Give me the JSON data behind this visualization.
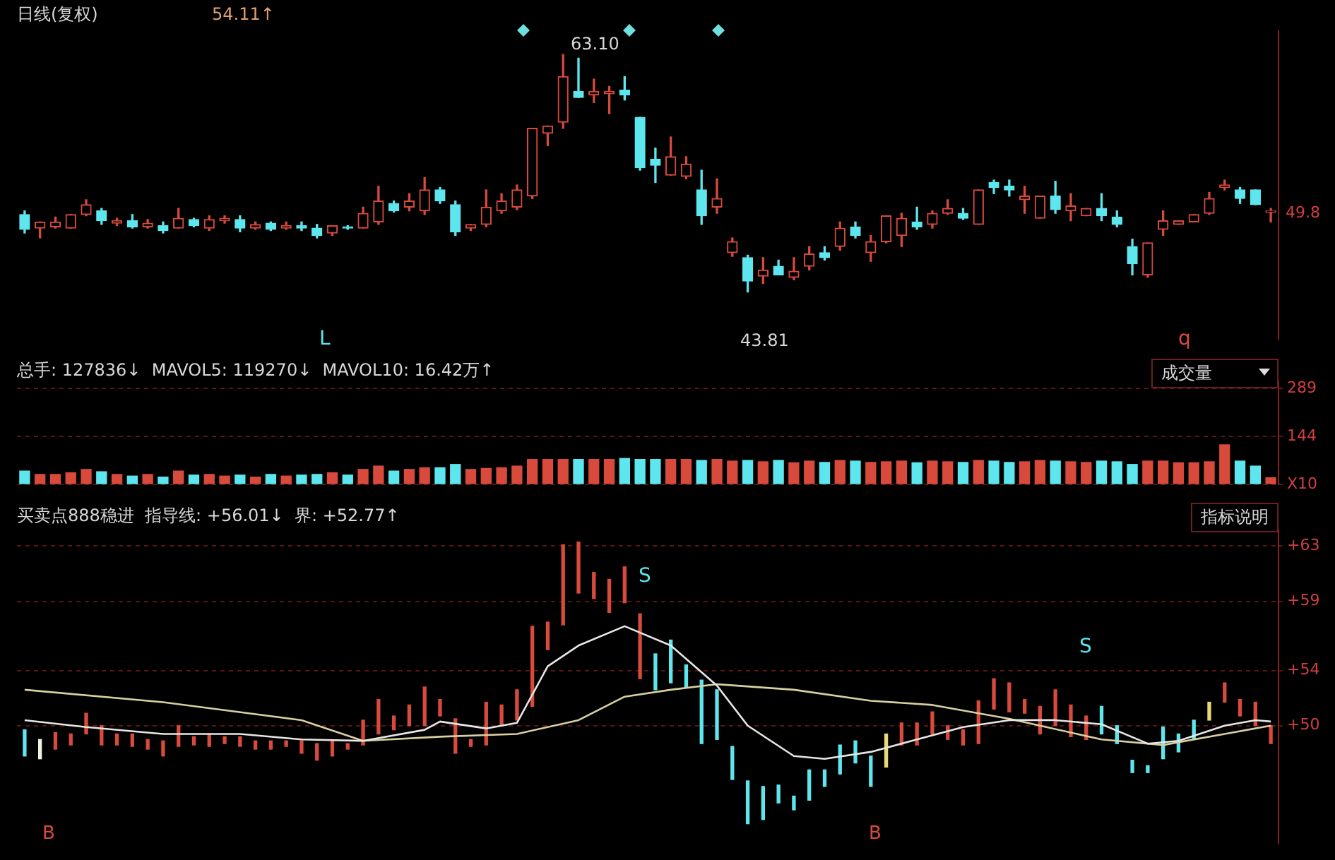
{
  "chart_data": [
    {
      "type": "candlestick",
      "title": "日线(复权)",
      "tick_labels": false,
      "categories": [
        null,
        null,
        null,
        null,
        null,
        null,
        null,
        null,
        null,
        null,
        null,
        null,
        null,
        null,
        null,
        null,
        null,
        null,
        null,
        null,
        null,
        null,
        null,
        null,
        null,
        null,
        null,
        null,
        null,
        null,
        null,
        null,
        null,
        null,
        null,
        null,
        null,
        null,
        null,
        null,
        null,
        null,
        null,
        null,
        null,
        null,
        null,
        null,
        null,
        null,
        null,
        null,
        null,
        null,
        null,
        null,
        null,
        null,
        null,
        null,
        null,
        null,
        null,
        null,
        null,
        null,
        null,
        null,
        null,
        null,
        null,
        null,
        null,
        null,
        null,
        null,
        null,
        null,
        null,
        null,
        null,
        null
      ],
      "ohlc": [
        [
          50.1,
          50.4,
          48.6,
          48.9
        ],
        [
          49.0,
          49.5,
          48.2,
          49.5
        ],
        [
          49.1,
          49.9,
          49.0,
          49.5
        ],
        [
          49.0,
          50.1,
          49.0,
          50.1
        ],
        [
          50.1,
          51.3,
          50.0,
          50.9
        ],
        [
          50.4,
          50.6,
          49.3,
          49.6
        ],
        [
          49.4,
          49.8,
          49.2,
          49.6
        ],
        [
          49.6,
          50.1,
          49.0,
          49.1
        ],
        [
          49.1,
          49.7,
          49.0,
          49.4
        ],
        [
          49.2,
          49.5,
          48.6,
          48.8
        ],
        [
          49.0,
          50.6,
          49.0,
          49.8
        ],
        [
          49.7,
          49.8,
          49.1,
          49.2
        ],
        [
          49.0,
          50.0,
          48.8,
          49.7
        ],
        [
          49.6,
          50.0,
          49.4,
          49.8
        ],
        [
          49.7,
          50.0,
          48.7,
          49.0
        ],
        [
          49.0,
          49.5,
          48.9,
          49.3
        ],
        [
          49.4,
          49.5,
          48.8,
          48.9
        ],
        [
          49.0,
          49.5,
          48.9,
          49.2
        ],
        [
          49.2,
          49.5,
          48.8,
          49.0
        ],
        [
          49.0,
          49.3,
          48.2,
          48.4
        ],
        [
          48.6,
          49.2,
          48.4,
          49.2
        ],
        [
          49.1,
          49.2,
          48.9,
          49.0
        ],
        [
          49.0,
          50.7,
          49.0,
          50.2
        ],
        [
          49.5,
          52.4,
          49.3,
          51.2
        ],
        [
          51.0,
          51.2,
          50.3,
          50.4
        ],
        [
          50.7,
          51.8,
          50.4,
          51.2
        ],
        [
          50.4,
          53.1,
          50.1,
          52.1
        ],
        [
          52.1,
          52.3,
          51.0,
          51.2
        ],
        [
          50.9,
          51.2,
          48.4,
          48.7
        ],
        [
          49.0,
          49.3,
          48.8,
          49.3
        ],
        [
          49.3,
          52.1,
          49.1,
          50.7
        ],
        [
          50.4,
          51.8,
          50.2,
          51.2
        ],
        [
          50.7,
          52.5,
          50.5,
          52.1
        ],
        [
          51.6,
          57.1,
          51.4,
          57.1
        ],
        [
          56.7,
          57.3,
          55.7,
          57.3
        ],
        [
          57.6,
          63.1,
          57.1,
          61.3
        ],
        [
          60.1,
          62.8,
          59.6,
          59.6
        ],
        [
          59.8,
          61.1,
          59.2,
          60.1
        ],
        [
          59.9,
          60.5,
          58.3,
          60.1
        ],
        [
          60.2,
          61.3,
          59.4,
          59.8
        ],
        [
          58.0,
          58.0,
          53.7,
          53.9
        ],
        [
          54.6,
          55.5,
          52.7,
          54.1
        ],
        [
          53.3,
          56.4,
          53.3,
          54.8
        ],
        [
          53.2,
          54.8,
          53.0,
          54.2
        ],
        [
          52.1,
          53.7,
          49.3,
          50.0
        ],
        [
          50.7,
          53.0,
          50.2,
          51.4
        ],
        [
          47.0,
          48.2,
          46.7,
          47.9
        ],
        [
          46.6,
          46.8,
          43.81,
          44.7
        ],
        [
          45.1,
          46.6,
          44.5,
          45.6
        ],
        [
          45.9,
          46.4,
          45.2,
          45.2
        ],
        [
          45.0,
          46.6,
          44.8,
          45.5
        ],
        [
          45.9,
          47.5,
          45.6,
          46.9
        ],
        [
          47.0,
          47.5,
          46.4,
          46.6
        ],
        [
          47.5,
          49.5,
          47.2,
          49.0
        ],
        [
          49.1,
          49.5,
          48.2,
          48.4
        ],
        [
          47.0,
          48.4,
          46.3,
          47.9
        ],
        [
          47.9,
          50.0,
          47.8,
          50.0
        ],
        [
          48.4,
          50.2,
          47.5,
          49.8
        ],
        [
          49.5,
          50.7,
          48.9,
          49.1
        ],
        [
          49.3,
          50.4,
          49.0,
          50.2
        ],
        [
          50.2,
          51.3,
          50.1,
          50.6
        ],
        [
          50.2,
          50.6,
          49.7,
          49.8
        ],
        [
          49.3,
          52.1,
          49.3,
          52.1
        ],
        [
          52.7,
          52.9,
          51.8,
          52.3
        ],
        [
          52.4,
          52.9,
          51.6,
          52.1
        ],
        [
          51.3,
          52.4,
          50.2,
          51.6
        ],
        [
          49.8,
          51.6,
          49.8,
          51.6
        ],
        [
          51.6,
          52.8,
          50.2,
          50.5
        ],
        [
          50.4,
          51.8,
          49.6,
          50.8
        ],
        [
          50.0,
          50.6,
          50.0,
          50.6
        ],
        [
          50.6,
          51.8,
          49.6,
          50.0
        ],
        [
          49.9,
          50.4,
          49.1,
          49.3
        ],
        [
          47.5,
          48.1,
          45.2,
          46.1
        ],
        [
          45.2,
          47.8,
          45.0,
          47.8
        ],
        [
          48.9,
          50.4,
          48.4,
          49.6
        ],
        [
          49.3,
          49.6,
          49.3,
          49.6
        ],
        [
          49.5,
          50.1,
          49.5,
          50.1
        ],
        [
          50.2,
          51.9,
          50.1,
          51.4
        ],
        [
          52.3,
          52.9,
          52.1,
          52.5
        ],
        [
          52.1,
          52.3,
          51.0,
          51.4
        ],
        [
          52.1,
          52.1,
          50.9,
          50.9
        ],
        [
          50.3,
          50.6,
          49.5,
          50.4
        ]
      ],
      "colors": [
        "#5ee6ee",
        "#d84a3c",
        "#d84a3c",
        "#d84a3c",
        "#d84a3c",
        "#5ee6ee",
        "#d84a3c",
        "#5ee6ee",
        "#d84a3c",
        "#5ee6ee",
        "#d84a3c",
        "#5ee6ee",
        "#d84a3c",
        "#d84a3c",
        "#5ee6ee",
        "#d84a3c",
        "#5ee6ee",
        "#d84a3c",
        "#5ee6ee",
        "#5ee6ee",
        "#d84a3c",
        "#5ee6ee",
        "#d84a3c",
        "#d84a3c",
        "#5ee6ee",
        "#d84a3c",
        "#d84a3c",
        "#5ee6ee",
        "#5ee6ee",
        "#d84a3c",
        "#d84a3c",
        "#d84a3c",
        "#d84a3c",
        "#d84a3c",
        "#d84a3c",
        "#d84a3c",
        "#5ee6ee",
        "#d84a3c",
        "#d84a3c",
        "#5ee6ee",
        "#5ee6ee",
        "#5ee6ee",
        "#d84a3c",
        "#d84a3c",
        "#5ee6ee",
        "#d84a3c",
        "#d84a3c",
        "#5ee6ee",
        "#d84a3c",
        "#5ee6ee",
        "#d84a3c",
        "#d84a3c",
        "#5ee6ee",
        "#d84a3c",
        "#5ee6ee",
        "#d84a3c",
        "#d84a3c",
        "#d84a3c",
        "#5ee6ee",
        "#d84a3c",
        "#d84a3c",
        "#5ee6ee",
        "#d84a3c",
        "#5ee6ee",
        "#5ee6ee",
        "#d84a3c",
        "#d84a3c",
        "#5ee6ee",
        "#d84a3c",
        "#d84a3c",
        "#5ee6ee",
        "#5ee6ee",
        "#5ee6ee",
        "#d84a3c",
        "#d84a3c",
        "#d84a3c",
        "#d84a3c",
        "#d84a3c",
        "#d84a3c",
        "#5ee6ee",
        "#5ee6ee",
        "#d84a3c"
      ],
      "annotations": [
        "54.11↑",
        "63.10",
        "43.81",
        "L",
        "q",
        "49.8"
      ]
    },
    {
      "type": "bar",
      "title": "总手: 127836↓  MAVOL5: 119270↓  MAVOL10: 16.42万↑",
      "tick_labels": "y",
      "grid": "y",
      "categories": [
        null,
        null,
        null,
        null,
        null,
        null,
        null,
        null,
        null,
        null,
        null,
        null,
        null,
        null,
        null,
        null,
        null,
        null,
        null,
        null,
        null,
        null,
        null,
        null,
        null,
        null,
        null,
        null,
        null,
        null,
        null,
        null,
        null,
        null,
        null,
        null,
        null,
        null,
        null,
        null,
        null,
        null,
        null,
        null,
        null,
        null,
        null,
        null,
        null,
        null,
        null,
        null,
        null,
        null,
        null,
        null,
        null,
        null,
        null,
        null,
        null,
        null,
        null,
        null,
        null,
        null,
        null,
        null,
        null,
        null,
        null,
        null,
        null,
        null,
        null,
        null,
        null,
        null,
        null,
        null,
        null,
        null
      ],
      "values": [
        40,
        30,
        30,
        35,
        45,
        38,
        30,
        25,
        30,
        22,
        40,
        28,
        30,
        25,
        28,
        22,
        30,
        25,
        28,
        30,
        35,
        28,
        45,
        55,
        40,
        45,
        50,
        50,
        60,
        45,
        48,
        50,
        55,
        75,
        75,
        75,
        75,
        75,
        75,
        78,
        75,
        75,
        75,
        75,
        72,
        75,
        70,
        72,
        68,
        72,
        65,
        70,
        66,
        72,
        70,
        66,
        68,
        70,
        65,
        70,
        68,
        66,
        72,
        70,
        66,
        68,
        72,
        70,
        68,
        66,
        70,
        68,
        60,
        70,
        70,
        65,
        65,
        68,
        119,
        70,
        55,
        20
      ],
      "colors": [
        "#5ee6ee",
        "#d84a3c",
        "#d84a3c",
        "#d84a3c",
        "#d84a3c",
        "#5ee6ee",
        "#d84a3c",
        "#5ee6ee",
        "#d84a3c",
        "#5ee6ee",
        "#d84a3c",
        "#5ee6ee",
        "#d84a3c",
        "#d84a3c",
        "#5ee6ee",
        "#d84a3c",
        "#5ee6ee",
        "#d84a3c",
        "#5ee6ee",
        "#5ee6ee",
        "#d84a3c",
        "#5ee6ee",
        "#d84a3c",
        "#d84a3c",
        "#5ee6ee",
        "#d84a3c",
        "#d84a3c",
        "#5ee6ee",
        "#5ee6ee",
        "#d84a3c",
        "#d84a3c",
        "#d84a3c",
        "#d84a3c",
        "#d84a3c",
        "#d84a3c",
        "#d84a3c",
        "#5ee6ee",
        "#d84a3c",
        "#d84a3c",
        "#5ee6ee",
        "#5ee6ee",
        "#5ee6ee",
        "#d84a3c",
        "#d84a3c",
        "#5ee6ee",
        "#d84a3c",
        "#d84a3c",
        "#5ee6ee",
        "#d84a3c",
        "#5ee6ee",
        "#d84a3c",
        "#d84a3c",
        "#5ee6ee",
        "#d84a3c",
        "#5ee6ee",
        "#d84a3c",
        "#d84a3c",
        "#d84a3c",
        "#5ee6ee",
        "#d84a3c",
        "#d84a3c",
        "#5ee6ee",
        "#d84a3c",
        "#5ee6ee",
        "#5ee6ee",
        "#d84a3c",
        "#d84a3c",
        "#5ee6ee",
        "#d84a3c",
        "#d84a3c",
        "#5ee6ee",
        "#5ee6ee",
        "#5ee6ee",
        "#d84a3c",
        "#d84a3c",
        "#d84a3c",
        "#d84a3c",
        "#d84a3c",
        "#d84a3c",
        "#5ee6ee",
        "#5ee6ee",
        "#d84a3c"
      ],
      "ylim": [
        0,
        310
      ],
      "yticks": [
        {
          "value": 0,
          "label": "X10"
        },
        144,
        289
      ],
      "annotations": [
        "成交量"
      ]
    },
    {
      "type": "bar",
      "title": "买卖点888稳进  指导线: +56.01↓  界: +52.77↑",
      "tick_labels": "y",
      "grid": "y",
      "categories": [
        null,
        null,
        null,
        null,
        null,
        null,
        null,
        null,
        null,
        null,
        null,
        null,
        null,
        null,
        null,
        null,
        null,
        null,
        null,
        null,
        null,
        null,
        null,
        null,
        null,
        null,
        null,
        null,
        null,
        null,
        null,
        null,
        null,
        null,
        null,
        null,
        null,
        null,
        null,
        null,
        null,
        null,
        null,
        null,
        null,
        null,
        null,
        null,
        null,
        null,
        null,
        null,
        null,
        null,
        null,
        null,
        null,
        null,
        null,
        null,
        null,
        null,
        null,
        null,
        null,
        null,
        null,
        null,
        null,
        null,
        null,
        null,
        null,
        null,
        null,
        null,
        null,
        null,
        null,
        null,
        null,
        null
      ],
      "series": [
        {
          "type": "bar",
          "colors": [
            "#5ee6ee",
            "#f0f0e0",
            "#d84a3c",
            "#d84a3c",
            "#d84a3c",
            "#d84a3c",
            "#d84a3c",
            "#d84a3c",
            "#d84a3c",
            "#d84a3c",
            "#d84a3c",
            "#d84a3c",
            "#d84a3c",
            "#d84a3c",
            "#d84a3c",
            "#d84a3c",
            "#d84a3c",
            "#d84a3c",
            "#d84a3c",
            "#d84a3c",
            "#d84a3c",
            "#d84a3c",
            "#d84a3c",
            "#d84a3c",
            "#d84a3c",
            "#d84a3c",
            "#d84a3c",
            "#d84a3c",
            "#d84a3c",
            "#d84a3c",
            "#d84a3c",
            "#d84a3c",
            "#d84a3c",
            "#d84a3c",
            "#d84a3c",
            "#d84a3c",
            "#d84a3c",
            "#d84a3c",
            "#d84a3c",
            "#d84a3c",
            "#d84a3c",
            "#5ee6ee",
            "#5ee6ee",
            "#5ee6ee",
            "#5ee6ee",
            "#5ee6ee",
            "#5ee6ee",
            "#5ee6ee",
            "#5ee6ee",
            "#5ee6ee",
            "#5ee6ee",
            "#5ee6ee",
            "#5ee6ee",
            "#5ee6ee",
            "#5ee6ee",
            "#5ee6ee",
            "#e8d878",
            "#d84a3c",
            "#d84a3c",
            "#d84a3c",
            "#d84a3c",
            "#d84a3c",
            "#d84a3c",
            "#d84a3c",
            "#d84a3c",
            "#d84a3c",
            "#d84a3c",
            "#d84a3c",
            "#d84a3c",
            "#d84a3c",
            "#5ee6ee",
            "#5ee6ee",
            "#5ee6ee",
            "#5ee6ee",
            "#5ee6ee",
            "#5ee6ee",
            "#5ee6ee",
            "#e8d878",
            "#d84a3c",
            "#d84a3c",
            "#d84a3c",
            "#d84a3c"
          ],
          "base": [
            47.8,
            47.6,
            48.3,
            48.6,
            49.4,
            48.6,
            48.6,
            48.5,
            48.3,
            47.8,
            48.5,
            48.6,
            48.5,
            48.7,
            48.5,
            48.3,
            48.3,
            48.5,
            48.0,
            47.5,
            47.8,
            48.3,
            48.6,
            49.4,
            49.7,
            50.0,
            50.0,
            50.7,
            48.0,
            48.5,
            48.6,
            50.0,
            50.4,
            51.4,
            55.5,
            57.3,
            59.6,
            59.2,
            58.2,
            58.9,
            53.4,
            52.6,
            53.1,
            52.8,
            48.7,
            49.0,
            46.1,
            42.9,
            43.2,
            44.4,
            43.9,
            44.6,
            45.6,
            46.5,
            47.3,
            45.6,
            47.0,
            48.6,
            48.6,
            49.4,
            49.0,
            48.6,
            48.7,
            51.2,
            51.0,
            50.9,
            49.4,
            50.0,
            49.2,
            49.0,
            49.4,
            48.7,
            46.6,
            46.6,
            47.6,
            48.1,
            49.0,
            50.4,
            51.7,
            50.7,
            50.0,
            48.7
          ],
          "values": [
            1.9,
            1.4,
            1.2,
            0.8,
            1.5,
            1.4,
            0.8,
            0.9,
            0.7,
            1.1,
            1.5,
            0.6,
            0.9,
            0.5,
            0.7,
            0.6,
            0.6,
            0.4,
            0.9,
            1.2,
            1.1,
            0.4,
            1.8,
            2.5,
            1.0,
            1.5,
            2.8,
            1.2,
            2.5,
            0.5,
            3.1,
            1.5,
            2.2,
            5.8,
            2.0,
            5.8,
            3.7,
            1.9,
            2.4,
            2.6,
            4.7,
            2.6,
            3.1,
            1.6,
            4.6,
            3.6,
            2.4,
            3.1,
            2.4,
            1.3,
            1.0,
            2.2,
            1.2,
            2.1,
            1.6,
            2.2,
            2.4,
            1.6,
            1.6,
            1.6,
            1.0,
            1.1,
            3.1,
            2.2,
            2.1,
            1.0,
            2.0,
            2.6,
            2.3,
            1.7,
            2.0,
            1.3,
            0.9,
            0.5,
            2.3,
            1.3,
            1.4,
            1.3,
            1.4,
            1.2,
            1.7,
            1.3
          ]
        },
        {
          "type": "line",
          "color": "#e6e6e6",
          "values": [
            50.4,
            null,
            null,
            null,
            49.9,
            null,
            null,
            null,
            null,
            49.4,
            null,
            null,
            null,
            null,
            49.4,
            null,
            null,
            null,
            49.0,
            null,
            null,
            null,
            48.9,
            null,
            null,
            null,
            49.7,
            50.3,
            null,
            null,
            49.8,
            null,
            50.2,
            null,
            54.3,
            null,
            55.8,
            null,
            null,
            57.2,
            null,
            null,
            55.8,
            null,
            null,
            52.9,
            null,
            50.0,
            null,
            null,
            47.8,
            null,
            47.6,
            null,
            null,
            48.1,
            null,
            null,
            49.0,
            null,
            null,
            49.9,
            null,
            null,
            50.4,
            null,
            null,
            50.4,
            null,
            null,
            50.1,
            null,
            null,
            48.7,
            null,
            48.9,
            null,
            null,
            50.0,
            null,
            50.4,
            50.3
          ]
        },
        {
          "type": "line",
          "color": "#d8d0a0",
          "values": [
            52.6,
            null,
            null,
            null,
            null,
            null,
            null,
            null,
            null,
            51.7,
            null,
            null,
            null,
            null,
            null,
            null,
            null,
            null,
            50.4,
            null,
            null,
            null,
            48.9,
            null,
            null,
            null,
            null,
            49.2,
            null,
            null,
            null,
            null,
            49.4,
            null,
            null,
            null,
            50.4,
            null,
            null,
            52.1,
            null,
            null,
            52.6,
            null,
            null,
            53.0,
            null,
            null,
            null,
            null,
            52.6,
            null,
            null,
            null,
            null,
            51.8,
            null,
            null,
            null,
            51.5,
            null,
            null,
            null,
            null,
            50.5,
            null,
            null,
            null,
            null,
            null,
            49.0,
            null,
            null,
            null,
            48.6,
            null,
            null,
            null,
            49.4,
            null,
            null,
            50.0
          ]
        }
      ],
      "ylim": [
        41.5,
        64.2
      ],
      "yticks": [
        {
          "value": 63,
          "label": "+63"
        },
        {
          "value": 59,
          "label": "+59"
        },
        {
          "value": 54,
          "label": "+54"
        },
        {
          "value": 50,
          "label": "+50"
        }
      ],
      "annotations": [
        "指标说明",
        "S",
        "S",
        "B",
        "B"
      ]
    }
  ]
}
